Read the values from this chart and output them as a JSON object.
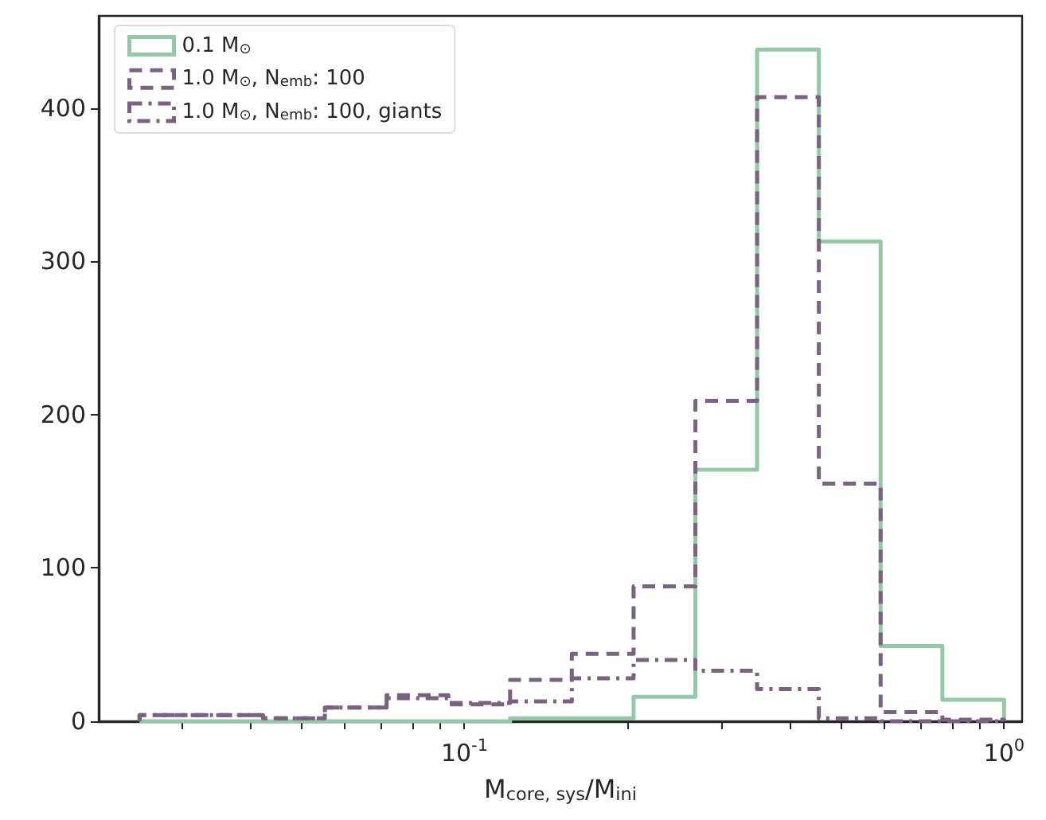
{
  "chart_data": {
    "type": "histogram",
    "xlabel": "M$_{core, sys}$/M$_{ini}$",
    "log": "x",
    "bins": [
      0.025,
      0.03254,
      0.04235,
      0.05512,
      0.07173,
      0.09336,
      0.1215,
      0.1581,
      0.2058,
      0.2679,
      0.3486,
      0.4537,
      0.5905,
      0.7686,
      1.0
    ],
    "series": [
      {
        "name": "0.1 M$_{⊙}$",
        "color": "#93c9a6",
        "line_style": "solid",
        "values": [
          0,
          0,
          0,
          0,
          0,
          0,
          2,
          2,
          16,
          164,
          438,
          313,
          49,
          14
        ]
      },
      {
        "name": "1.0 M$_{⊙}$, N$_{emb}$: 100",
        "color": "#7a6282",
        "line_style": "dashed",
        "values": [
          4,
          4,
          2,
          9,
          17,
          11,
          27,
          44,
          88,
          209,
          407,
          155,
          6,
          1
        ]
      },
      {
        "name": "1.0 M$_{⊙}$, N$_{emb}$: 100, giants",
        "color": "#79617f",
        "line_style": "dashdot",
        "values": [
          4,
          4,
          2,
          9,
          15,
          12,
          13,
          28,
          40,
          33,
          21,
          2,
          0,
          0
        ]
      }
    ],
    "xlim": [
      0.021,
      1.08
    ],
    "xticks": [
      {
        "value": 0.03,
        "label": null
      },
      {
        "value": 0.04,
        "label": null
      },
      {
        "value": 0.05,
        "label": null
      },
      {
        "value": 0.06,
        "label": null
      },
      {
        "value": 0.07,
        "label": null
      },
      {
        "value": 0.08,
        "label": null
      },
      {
        "value": 0.09,
        "label": null
      },
      {
        "value": 0.1,
        "label": "10$^{-1}$"
      },
      {
        "value": 0.2,
        "label": null
      },
      {
        "value": 0.3,
        "label": null
      },
      {
        "value": 0.4,
        "label": null
      },
      {
        "value": 0.5,
        "label": null
      },
      {
        "value": 0.6,
        "label": null
      },
      {
        "value": 0.7,
        "label": null
      },
      {
        "value": 0.8,
        "label": null
      },
      {
        "value": 0.9,
        "label": null
      },
      {
        "value": 1.0,
        "label": "10$^{0}$"
      }
    ],
    "ylim": [
      0,
      460
    ],
    "yticks": [
      0,
      100,
      200,
      300,
      400
    ],
    "grid": false,
    "legend": "top left"
  }
}
